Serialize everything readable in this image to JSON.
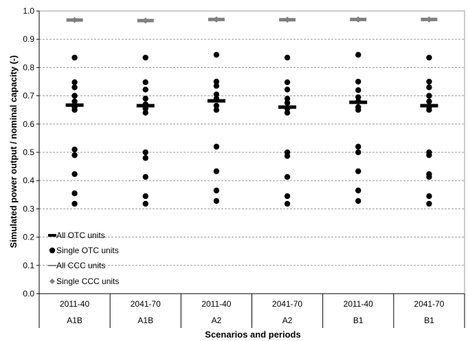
{
  "chart_data": {
    "type": "scatter",
    "title": "",
    "xlabel": "Scenarios and periods",
    "ylabel": "Simulated power output / nominal capacity (-)",
    "ylim": [
      0,
      1
    ],
    "y_ticks": [
      "0.0",
      "0.1",
      "0.2",
      "0.3",
      "0.4",
      "0.5",
      "0.6",
      "0.7",
      "0.8",
      "0.9",
      "1.0"
    ],
    "grid": "horizontal dashed",
    "legend_position": "lower-left",
    "categories": [
      {
        "period": "2011-40",
        "scenario": "A1B"
      },
      {
        "period": "2041-70",
        "scenario": "A1B"
      },
      {
        "period": "2011-40",
        "scenario": "A2"
      },
      {
        "period": "2041-70",
        "scenario": "A2"
      },
      {
        "period": "2011-40",
        "scenario": "B1"
      },
      {
        "period": "2041-70",
        "scenario": "B1"
      }
    ],
    "series": [
      {
        "name": "All OTC units",
        "marker": "thick black dash",
        "color": "#000000",
        "values": [
          0.667,
          0.665,
          0.682,
          0.66,
          0.677,
          0.665
        ]
      },
      {
        "name": "Single OTC units",
        "marker": "black dot",
        "color": "#000000",
        "values": [
          [
            0.835,
            0.748,
            0.73,
            0.7,
            0.68,
            0.66,
            0.65,
            0.51,
            0.49,
            0.423,
            0.355,
            0.318
          ],
          [
            0.835,
            0.748,
            0.722,
            0.69,
            0.67,
            0.655,
            0.64,
            0.5,
            0.48,
            0.413,
            0.345,
            0.318
          ],
          [
            0.845,
            0.75,
            0.735,
            0.705,
            0.69,
            0.665,
            0.65,
            0.52,
            0.433,
            0.365,
            0.328
          ],
          [
            0.835,
            0.748,
            0.722,
            0.69,
            0.675,
            0.655,
            0.64,
            0.5,
            0.487,
            0.413,
            0.345,
            0.318
          ],
          [
            0.845,
            0.75,
            0.72,
            0.695,
            0.68,
            0.66,
            0.65,
            0.52,
            0.5,
            0.433,
            0.365,
            0.328
          ],
          [
            0.835,
            0.75,
            0.73,
            0.7,
            0.68,
            0.66,
            0.65,
            0.5,
            0.49,
            0.423,
            0.413,
            0.345,
            0.318
          ]
        ]
      },
      {
        "name": "All CCC units",
        "marker": "thin gray dash",
        "color": "#808080",
        "values": [
          0.968,
          0.966,
          0.97,
          0.969,
          0.97,
          0.97
        ]
      },
      {
        "name": "Single CCC units",
        "marker": "gray diamond",
        "color": "#808080",
        "values": [
          [
            0.968
          ],
          [
            0.966
          ],
          [
            0.97
          ],
          [
            0.969
          ],
          [
            0.97
          ],
          [
            0.97
          ]
        ]
      }
    ]
  }
}
